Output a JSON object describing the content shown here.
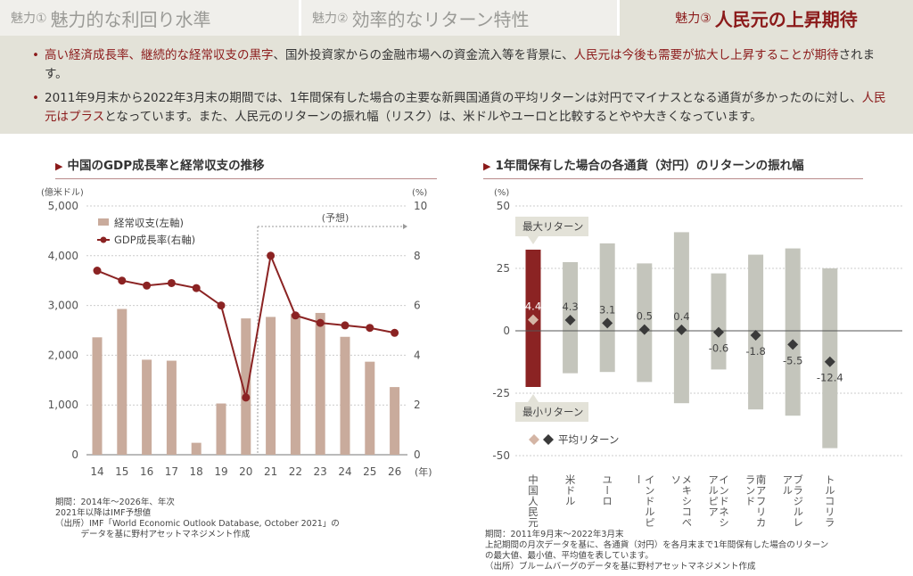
{
  "tabs": [
    {
      "prefix": "魅力①",
      "label": "魅力的な利回り水準"
    },
    {
      "prefix": "魅力②",
      "label": "効率的なリターン特性"
    },
    {
      "prefix": "魅力③",
      "label": "人民元の上昇期待"
    }
  ],
  "info": {
    "b1": [
      {
        "t": "高い経済成長率、継続的な経常収支の黒字",
        "r": true
      },
      {
        "t": "、国外投資家からの金融市場への資金流入等を背景に、",
        "r": false
      },
      {
        "t": "人民元は今後も需要が拡大し上昇することが期待",
        "r": true
      },
      {
        "t": "されます。",
        "r": false
      }
    ],
    "b2": [
      {
        "t": "2011年9月末から2022年3月末の期間では、1年間保有した場合の主要な新興国通貨の平均リターンは対円でマイナスとなる通貨が多かったのに対し、",
        "r": false
      },
      {
        "t": "人民元はプラス",
        "r": true
      },
      {
        "t": "となっています。また、人民元のリターンの振れ幅（リスク）は、米ドルやユーロと比較するとやや大きくなっています。",
        "r": false
      }
    ]
  },
  "left": {
    "heading": "中国のGDP成長率と経常収支の推移",
    "notes": [
      "期間：2014年～2026年、年次",
      "2021年以降はIMF予想値",
      "（出所）IMF「World Economic Outlook Database, October 2021」の",
      "　　　データを基に野村アセットマネジメント作成"
    ]
  },
  "right": {
    "heading": "1年間保有した場合の各通貨（対円）のリターンの振れ幅",
    "notes": [
      "期間：2011年9月末～2022年3月末",
      "上記期間の月次データを基に、各通貨（対円）を各月末まで1年間保有した場合のリターン",
      "の最大値、最小値、平均値を表しています。",
      "（出所）ブルームバーグのデータを基に野村アセットマネジメント作成"
    ]
  },
  "chart_data": [
    {
      "type": "bar+line",
      "title": "中国のGDP成長率と経常収支の推移",
      "categories": [
        "14",
        "15",
        "16",
        "17",
        "18",
        "19",
        "20",
        "21",
        "22",
        "23",
        "24",
        "25",
        "26"
      ],
      "xlabel": "(年)",
      "ylabel": "(億米ドル)",
      "y2label": "(%)",
      "ylim": [
        0,
        5000
      ],
      "yticks": [
        "0",
        "1,000",
        "2,000",
        "3,000",
        "4,000",
        "5,000"
      ],
      "y2lim": [
        0,
        10
      ],
      "y2ticks": [
        "0",
        "2",
        "4",
        "6",
        "8",
        "10"
      ],
      "forecast_label": "(予想)",
      "series": [
        {
          "name": "経常収支(左軸)",
          "type": "bar",
          "color": "#c9ab9c",
          "values": [
            2360,
            2930,
            1910,
            1890,
            240,
            1030,
            2740,
            2770,
            2830,
            2850,
            2370,
            1870,
            1360
          ]
        },
        {
          "name": "GDP成長率(右軸)",
          "type": "line",
          "color": "#8b2323",
          "values": [
            7.4,
            7.0,
            6.8,
            6.9,
            6.7,
            6.0,
            2.3,
            8.0,
            5.6,
            5.3,
            5.2,
            5.1,
            4.9
          ]
        }
      ]
    },
    {
      "type": "range",
      "title": "1年間保有した場合の各通貨（対円）のリターンの振れ幅",
      "ylabel": "(%)",
      "ylim": [
        -50,
        50
      ],
      "yticks": [
        "-50",
        "-25",
        "0",
        "25",
        "50"
      ],
      "categories": [
        "中国人民元",
        "米ドル",
        "ユーロ",
        "インドルピー",
        "メキシコペソ",
        "インドネシアルピア",
        "南アフリカランド",
        "ブラジルレアル",
        "トルコリラ"
      ],
      "max": [
        32.5,
        27.5,
        35,
        27,
        39.5,
        23,
        30.5,
        33,
        25
      ],
      "min": [
        -22.5,
        -17,
        -16.5,
        -20.5,
        -29,
        -15.5,
        -31.5,
        -34,
        -47
      ],
      "avg": [
        4.4,
        4.3,
        3.1,
        0.5,
        0.4,
        -0.6,
        -1.8,
        -5.5,
        -12.4
      ],
      "avg_labels": [
        "4.4",
        "4.3",
        "3.1",
        "0.5",
        "0.4",
        "-0.6",
        "-1.8",
        "-5.5",
        "-12.4"
      ],
      "callouts": {
        "max": "最大リターン",
        "min": "最小リターン"
      },
      "legend": "平均リターン",
      "colors": {
        "highlight": "#8b2323",
        "bar": "#c4c5bc",
        "marker": "#3a3a3a",
        "highlight_marker": "#d4b5a5"
      }
    }
  ]
}
